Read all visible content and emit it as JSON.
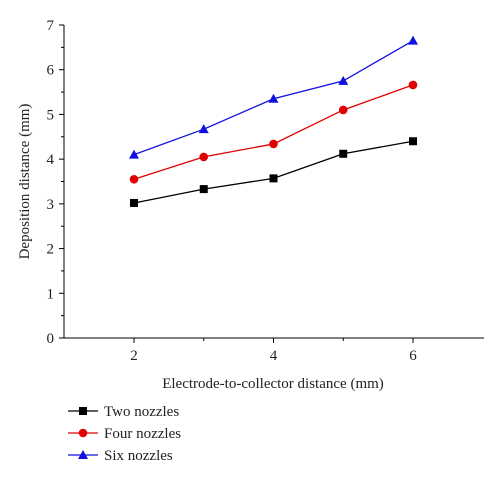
{
  "chart_data": {
    "type": "line",
    "xlabel": "Electrode-to-collector distance (mm)",
    "ylabel": "Deposition distance (mm)",
    "x": [
      2,
      3,
      4,
      5,
      6
    ],
    "xlim": [
      1.0,
      6.0
    ],
    "ylim": [
      0,
      7
    ],
    "xticks": [
      "2",
      "4",
      "6"
    ],
    "yticks": [
      "0",
      "1",
      "2",
      "3",
      "4",
      "5",
      "6",
      "7"
    ],
    "grid": false,
    "legend_position": "bottom-left",
    "series": [
      {
        "name": "Two nozzles",
        "color": "#000000",
        "marker": "square",
        "values": [
          3.02,
          3.33,
          3.57,
          4.12,
          4.4
        ]
      },
      {
        "name": "Four nozzles",
        "color": "#e00000",
        "marker": "circle",
        "values": [
          3.55,
          4.05,
          4.34,
          5.1,
          5.66
        ]
      },
      {
        "name": "Six nozzles",
        "color": "#1010e0",
        "marker": "triangle",
        "values": [
          4.1,
          4.67,
          5.35,
          5.75,
          6.65
        ]
      }
    ]
  }
}
